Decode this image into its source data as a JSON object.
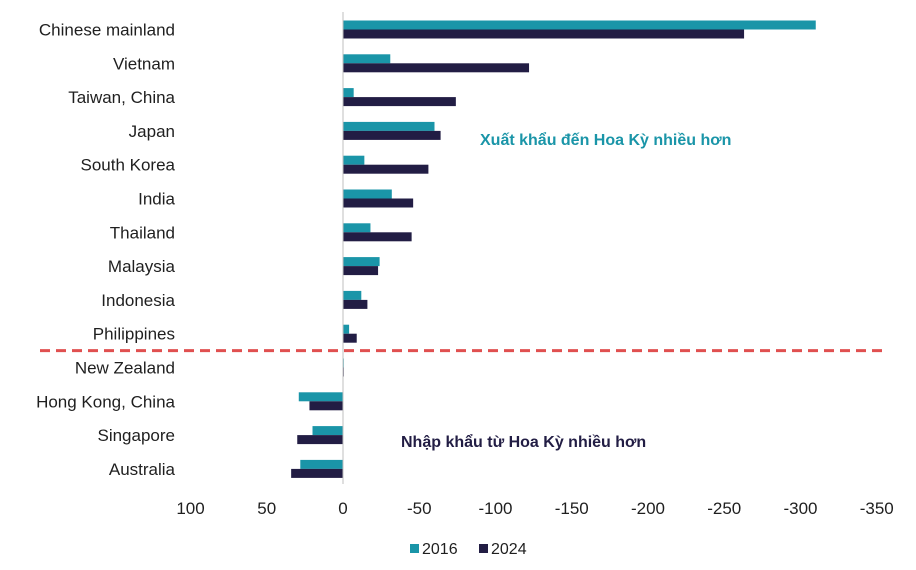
{
  "chart_data": {
    "type": "bar",
    "orientation": "horizontal",
    "categories": [
      "Chinese mainland",
      "Vietnam",
      "Taiwan, China",
      "Japan",
      "South Korea",
      "India",
      "Thailand",
      "Malaysia",
      "Indonesia",
      "Philippines",
      "New Zealand",
      "Hong Kong, China",
      "Singapore",
      "Australia"
    ],
    "series": [
      {
        "name": "2016",
        "color": "#1a95a8",
        "values": [
          -310,
          -31,
          -7,
          -60,
          -14,
          -32,
          -18,
          -24,
          -12,
          -4,
          -0.5,
          29,
          20,
          28
        ]
      },
      {
        "name": "2024",
        "color": "#221d44",
        "values": [
          -263,
          -122,
          -74,
          -64,
          -56,
          -46,
          -45,
          -23,
          -16,
          -9,
          -0.5,
          22,
          30,
          34
        ]
      }
    ],
    "x_ticks": [
      "100",
      "50",
      "0",
      "-50",
      "-100",
      "-150",
      "-200",
      "-250",
      "-300",
      "-350"
    ],
    "xlim": [
      100,
      -350
    ],
    "x_reversed": true,
    "annotations": [
      {
        "text": "Xuất khẩu đến Hoa Kỳ nhiều hơn",
        "color": "#1a95a8"
      },
      {
        "text": "Nhập khẩu từ Hoa Kỳ nhiều hơn",
        "color": "#221d44"
      }
    ],
    "divider": {
      "color": "#e05050",
      "style": "dashed",
      "between": [
        "Philippines",
        "New Zealand"
      ]
    },
    "legend_position": "bottom-center",
    "grid": false
  }
}
